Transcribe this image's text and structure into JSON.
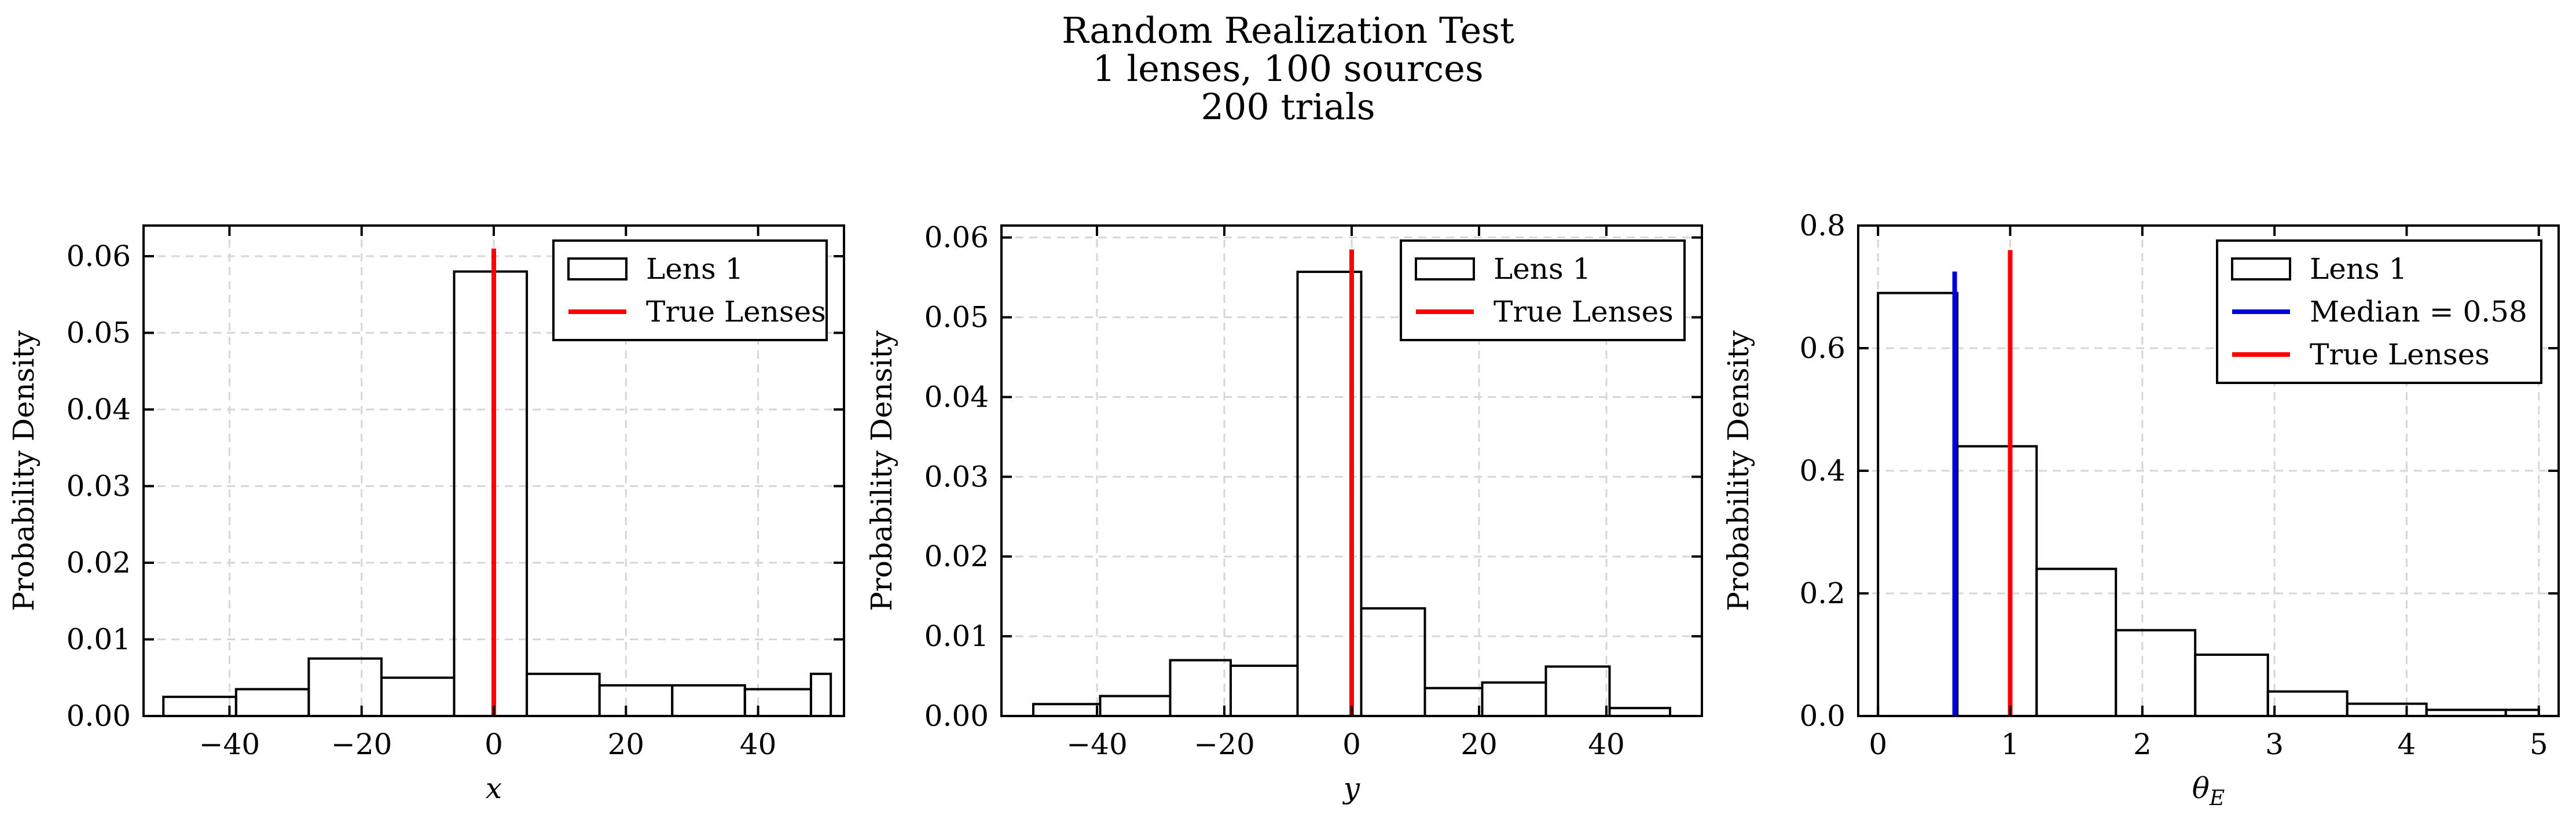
{
  "title_lines": [
    "Random Realization Test",
    "1 lenses, 100 sources",
    "200 trials"
  ],
  "chart_data": [
    {
      "type": "histogram",
      "name": "x-panel",
      "xlabel": "x",
      "ylabel": "Probability Density",
      "xlim": [
        -53,
        53
      ],
      "ylim": [
        0,
        0.064
      ],
      "xticks": [
        -40,
        -20,
        0,
        20,
        40
      ],
      "xtick_labels": [
        "−40",
        "−20",
        "0",
        "20",
        "40"
      ],
      "yticks": [
        0,
        0.01,
        0.02,
        0.03,
        0.04,
        0.05,
        0.06
      ],
      "ytick_labels": [
        "0.00",
        "0.01",
        "0.02",
        "0.03",
        "0.04",
        "0.05",
        "0.06"
      ],
      "grid": true,
      "legend_position": "top-right",
      "bins": [
        {
          "x0": -50,
          "x1": -39,
          "density": 0.0025
        },
        {
          "x0": -39,
          "x1": -28,
          "density": 0.0035
        },
        {
          "x0": -28,
          "x1": -17,
          "density": 0.0075
        },
        {
          "x0": -17,
          "x1": -6,
          "density": 0.005
        },
        {
          "x0": -6,
          "x1": 5,
          "density": 0.058
        },
        {
          "x0": 5,
          "x1": 16,
          "density": 0.0055
        },
        {
          "x0": 16,
          "x1": 27,
          "density": 0.004
        },
        {
          "x0": 27,
          "x1": 38,
          "density": 0.004
        },
        {
          "x0": 38,
          "x1": 48,
          "density": 0.0035
        },
        {
          "x0": 48,
          "x1": 51,
          "density": 0.0055
        }
      ],
      "vlines": [
        {
          "label": "True Lenses",
          "x": 0,
          "y_top": 0.061,
          "color": "#ff0000"
        }
      ],
      "legend": [
        {
          "kind": "patch",
          "label": "Lens 1"
        },
        {
          "kind": "line",
          "label": "True Lenses",
          "color": "#ff0000"
        }
      ]
    },
    {
      "type": "histogram",
      "name": "y-panel",
      "xlabel": "y",
      "ylabel": "Probability Density",
      "xlim": [
        -55,
        55
      ],
      "ylim": [
        0,
        0.0615
      ],
      "xticks": [
        -40,
        -20,
        0,
        20,
        40
      ],
      "xtick_labels": [
        "−40",
        "−20",
        "0",
        "20",
        "40"
      ],
      "yticks": [
        0,
        0.01,
        0.02,
        0.03,
        0.04,
        0.05,
        0.06
      ],
      "ytick_labels": [
        "0.00",
        "0.01",
        "0.02",
        "0.03",
        "0.04",
        "0.05",
        "0.06"
      ],
      "grid": true,
      "legend_position": "top-right",
      "bins": [
        {
          "x0": -50,
          "x1": -39.5,
          "density": 0.0015
        },
        {
          "x0": -39.5,
          "x1": -28.5,
          "density": 0.0025
        },
        {
          "x0": -28.5,
          "x1": -19,
          "density": 0.007
        },
        {
          "x0": -19,
          "x1": -8.5,
          "density": 0.0063
        },
        {
          "x0": -8.5,
          "x1": 1.5,
          "density": 0.0557
        },
        {
          "x0": 1.5,
          "x1": 11.5,
          "density": 0.0135
        },
        {
          "x0": 11.5,
          "x1": 20.5,
          "density": 0.0035
        },
        {
          "x0": 20.5,
          "x1": 30.5,
          "density": 0.0042
        },
        {
          "x0": 30.5,
          "x1": 40.5,
          "density": 0.0062
        },
        {
          "x0": 40.5,
          "x1": 50,
          "density": 0.001
        }
      ],
      "vlines": [
        {
          "label": "True Lenses",
          "x": 0,
          "y_top": 0.0585,
          "color": "#ff0000"
        }
      ],
      "legend": [
        {
          "kind": "patch",
          "label": "Lens 1"
        },
        {
          "kind": "line",
          "label": "True Lenses",
          "color": "#ff0000"
        }
      ]
    },
    {
      "type": "histogram",
      "name": "theta-panel",
      "xlabel": "θ",
      "xlabel_sub": "E",
      "ylabel": "Probability Density",
      "xlim": [
        -0.15,
        5.15
      ],
      "ylim": [
        0,
        0.8
      ],
      "xticks": [
        0,
        1,
        2,
        3,
        4,
        5
      ],
      "xtick_labels": [
        "0",
        "1",
        "2",
        "3",
        "4",
        "5"
      ],
      "yticks": [
        0,
        0.2,
        0.4,
        0.6,
        0.8
      ],
      "ytick_labels": [
        "0.0",
        "0.2",
        "0.4",
        "0.6",
        "0.8"
      ],
      "grid": true,
      "legend_position": "top-right",
      "bins": [
        {
          "x0": 0,
          "x1": 0.6,
          "density": 0.69
        },
        {
          "x0": 0.6,
          "x1": 1.2,
          "density": 0.44
        },
        {
          "x0": 1.2,
          "x1": 1.8,
          "density": 0.24
        },
        {
          "x0": 1.8,
          "x1": 2.4,
          "density": 0.14
        },
        {
          "x0": 2.4,
          "x1": 2.95,
          "density": 0.1
        },
        {
          "x0": 2.95,
          "x1": 3.55,
          "density": 0.04
        },
        {
          "x0": 3.55,
          "x1": 4.15,
          "density": 0.02
        },
        {
          "x0": 4.15,
          "x1": 4.75,
          "density": 0.01
        },
        {
          "x0": 4.75,
          "x1": 5.0,
          "density": 0.01
        }
      ],
      "vlines": [
        {
          "label": "Median = 0.58",
          "x": 0.58,
          "y_top": 0.725,
          "color": "#0000dd"
        },
        {
          "label": "True Lenses",
          "x": 1.0,
          "y_top": 0.76,
          "color": "#ff0000"
        }
      ],
      "legend": [
        {
          "kind": "patch",
          "label": "Lens 1"
        },
        {
          "kind": "line",
          "label": "Median = 0.58",
          "color": "#0000dd"
        },
        {
          "kind": "line",
          "label": "True Lenses",
          "color": "#ff0000"
        }
      ]
    }
  ]
}
